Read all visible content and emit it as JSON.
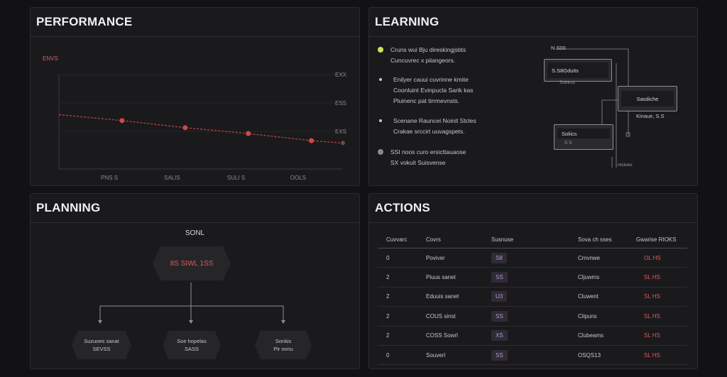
{
  "colors": {
    "accent_red": "#d04848",
    "dot_yellow": "#cfe35a",
    "dot_gray": "#8a8a8e"
  },
  "performance": {
    "title": "PERFORMANCE",
    "chart_data": {
      "type": "line",
      "title": "",
      "ylabel": "ENVS",
      "yticks": [
        "EXX",
        "ESS",
        "EXS"
      ],
      "categories": [
        "PNS S",
        "SALIS",
        "SULI S",
        "OOLS"
      ],
      "series": [
        {
          "name": "ENVS",
          "values": [
            4.6,
            4.1,
            3.5,
            3.0,
            2.4,
            2.2
          ]
        }
      ],
      "x": [
        0,
        1,
        2,
        3,
        4,
        4.5
      ],
      "ylim": [
        0,
        8
      ],
      "grid": true
    }
  },
  "learning": {
    "title": "LEARNING",
    "items": [
      {
        "lines": [
          "Cruns wui Bju direskingjsbts",
          "Cuncuvrec x piiangeors."
        ],
        "dot": "yellow"
      },
      {
        "lines": [
          "Enilyer cauui cuvrinne kmite",
          "Coonluint Evinpucla Sarik kas",
          "Pluinenc pat tirrmevnsts."
        ],
        "dot": "small"
      },
      {
        "lines": [
          "Scenane Rauncei Noinit Stcles",
          "Crakae srccirt uuvagspets."
        ],
        "dot": "small"
      },
      {
        "lines": [
          "SSI noos curo ersicttauaose",
          "SX vokuit Suisvense"
        ],
        "dot": "gray"
      }
    ],
    "diagram": {
      "top_label": "N S00",
      "box1": "S.S8Gduits",
      "box1_sub": "Sobirus",
      "box2": "Sasdiche",
      "box2_sub": "Kinaue, S.S",
      "box3": "Soliics",
      "box3_sub": "S S",
      "foot": "ntsloes"
    }
  },
  "planning": {
    "title": "PLANNING",
    "goal_title": "SONL",
    "goal": "8S SIWL 1SS",
    "children": [
      {
        "line1": "Suzuoes sanat",
        "line2": "SEVSS"
      },
      {
        "line1": "Soe hopelas",
        "line2": "SASS"
      },
      {
        "line1": "Sonkis",
        "line2": "Pir ovnu"
      }
    ]
  },
  "actions": {
    "title": "ACTIONS",
    "columns": [
      "Cuvvarc",
      "Covrs",
      "Susnuse",
      "Sova ch sses",
      "Gwarise RIOKS"
    ],
    "rows": [
      {
        "id": "0",
        "name": "Poviver",
        "badge": "S8",
        "status": "Cmvnwe",
        "value": "OL HS"
      },
      {
        "id": "2",
        "name": "Piuus sanet",
        "badge": "SS",
        "status": "Cljuwms",
        "value": "SL HS"
      },
      {
        "id": "2",
        "name": "Eduuis sanet",
        "badge": "U3",
        "status": "Cluwent",
        "value": "SL HS"
      },
      {
        "id": "2",
        "name": "COUS sinst",
        "badge": "SS",
        "status": "Cilpuns",
        "value": "SL HS"
      },
      {
        "id": "2",
        "name": "COSS Sowrl",
        "badge": "XS",
        "status": "Clubeams",
        "value": "SL HS"
      },
      {
        "id": "0",
        "name": "Souverl",
        "badge": "SS",
        "status": "OSQS13",
        "value": "SL HS"
      }
    ]
  }
}
